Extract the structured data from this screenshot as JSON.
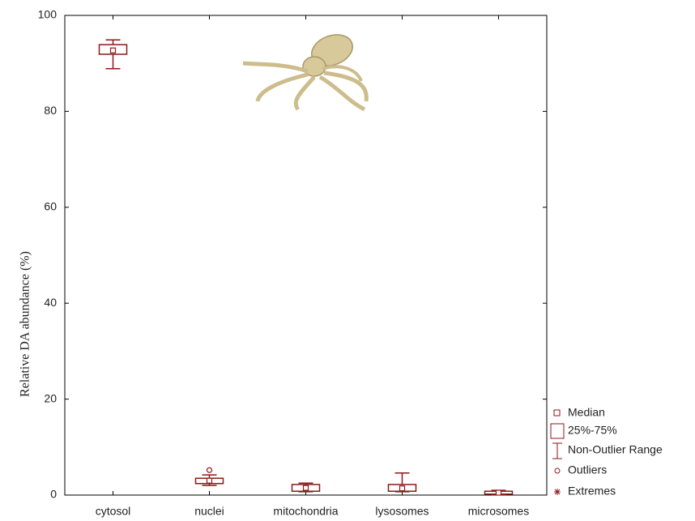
{
  "chart_data": {
    "type": "box",
    "y_label": "Relative DA abundance (%)",
    "categories": [
      "cytosol",
      "nuclei",
      "mitochondria",
      "lysosomes",
      "microsomes"
    ],
    "whisker_low": [
      88.9,
      2.0,
      0.7,
      0.7,
      0.1
    ],
    "q1": [
      91.9,
      2.4,
      0.8,
      0.8,
      0.2
    ],
    "median": [
      92.7,
      3.0,
      1.5,
      1.4,
      0.5
    ],
    "q3": [
      93.9,
      3.5,
      2.2,
      2.2,
      0.8
    ],
    "whisker_high": [
      94.9,
      4.2,
      2.5,
      4.6,
      1.0
    ],
    "outliers": [
      [],
      [
        5.2
      ],
      [],
      [],
      []
    ],
    "color": "#8b1a1a",
    "ylim": [
      0,
      100
    ],
    "yticks": [
      0,
      20,
      40,
      60,
      80,
      100
    ],
    "legend": [
      "Median",
      "25%-75%",
      "Non-Outlier Range",
      "Outliers",
      "Extremes"
    ]
  }
}
